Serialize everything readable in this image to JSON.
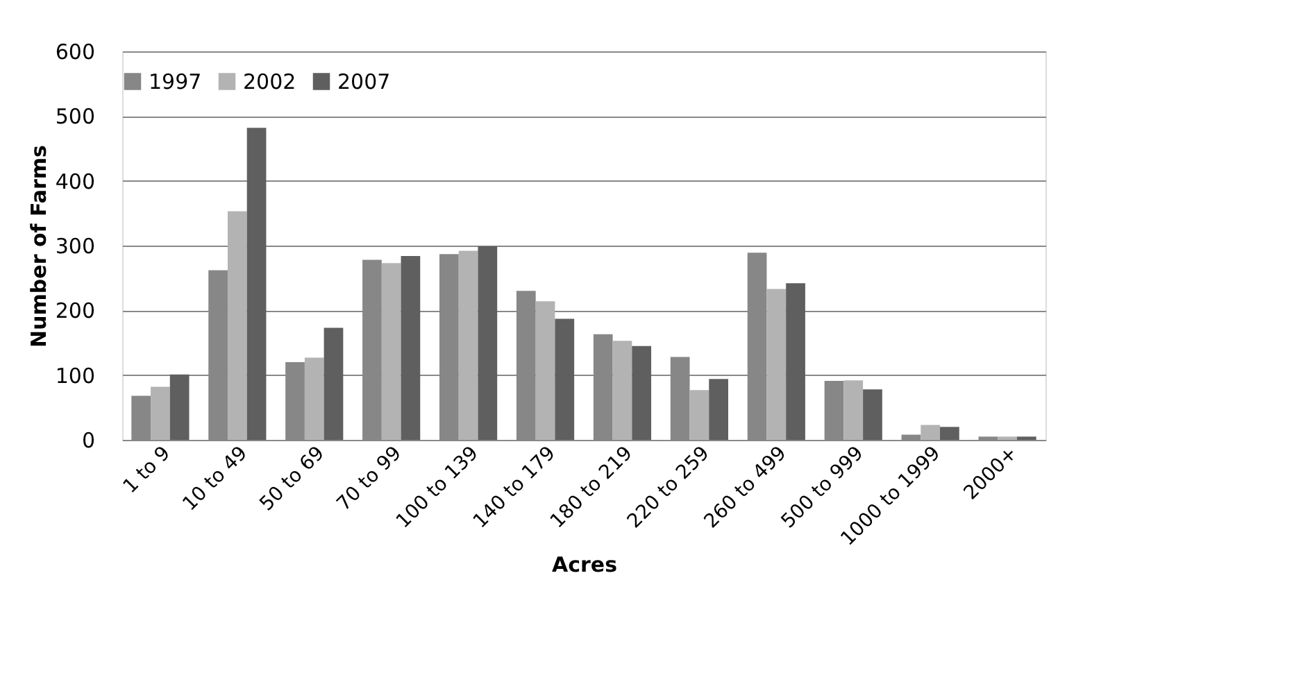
{
  "chart_data": {
    "type": "bar",
    "xlabel": "Acres",
    "ylabel": "Number of Farms",
    "categories": [
      "1 to 9",
      "10 to 49",
      "50 to 69",
      "70 to 99",
      "100 to 139",
      "140 to 179",
      "180 to 219",
      "220 to 259",
      "260 to 499",
      "500 to 999",
      "1000 to 1999",
      "2000+"
    ],
    "series": [
      {
        "name": "1997",
        "color": "#878787",
        "values": [
          68,
          262,
          120,
          278,
          287,
          230,
          163,
          128,
          289,
          91,
          8,
          5
        ]
      },
      {
        "name": "2002",
        "color": "#b3b3b3",
        "values": [
          82,
          353,
          127,
          273,
          292,
          214,
          153,
          77,
          233,
          92,
          23,
          5
        ]
      },
      {
        "name": "2007",
        "color": "#5f5f5f",
        "values": [
          101,
          482,
          173,
          284,
          299,
          187,
          145,
          94,
          242,
          78,
          20,
          5
        ]
      }
    ],
    "ylim": [
      0,
      600
    ],
    "yticks": [
      0,
      100,
      200,
      300,
      400,
      500,
      600
    ],
    "grid": "y",
    "legend": "top"
  }
}
